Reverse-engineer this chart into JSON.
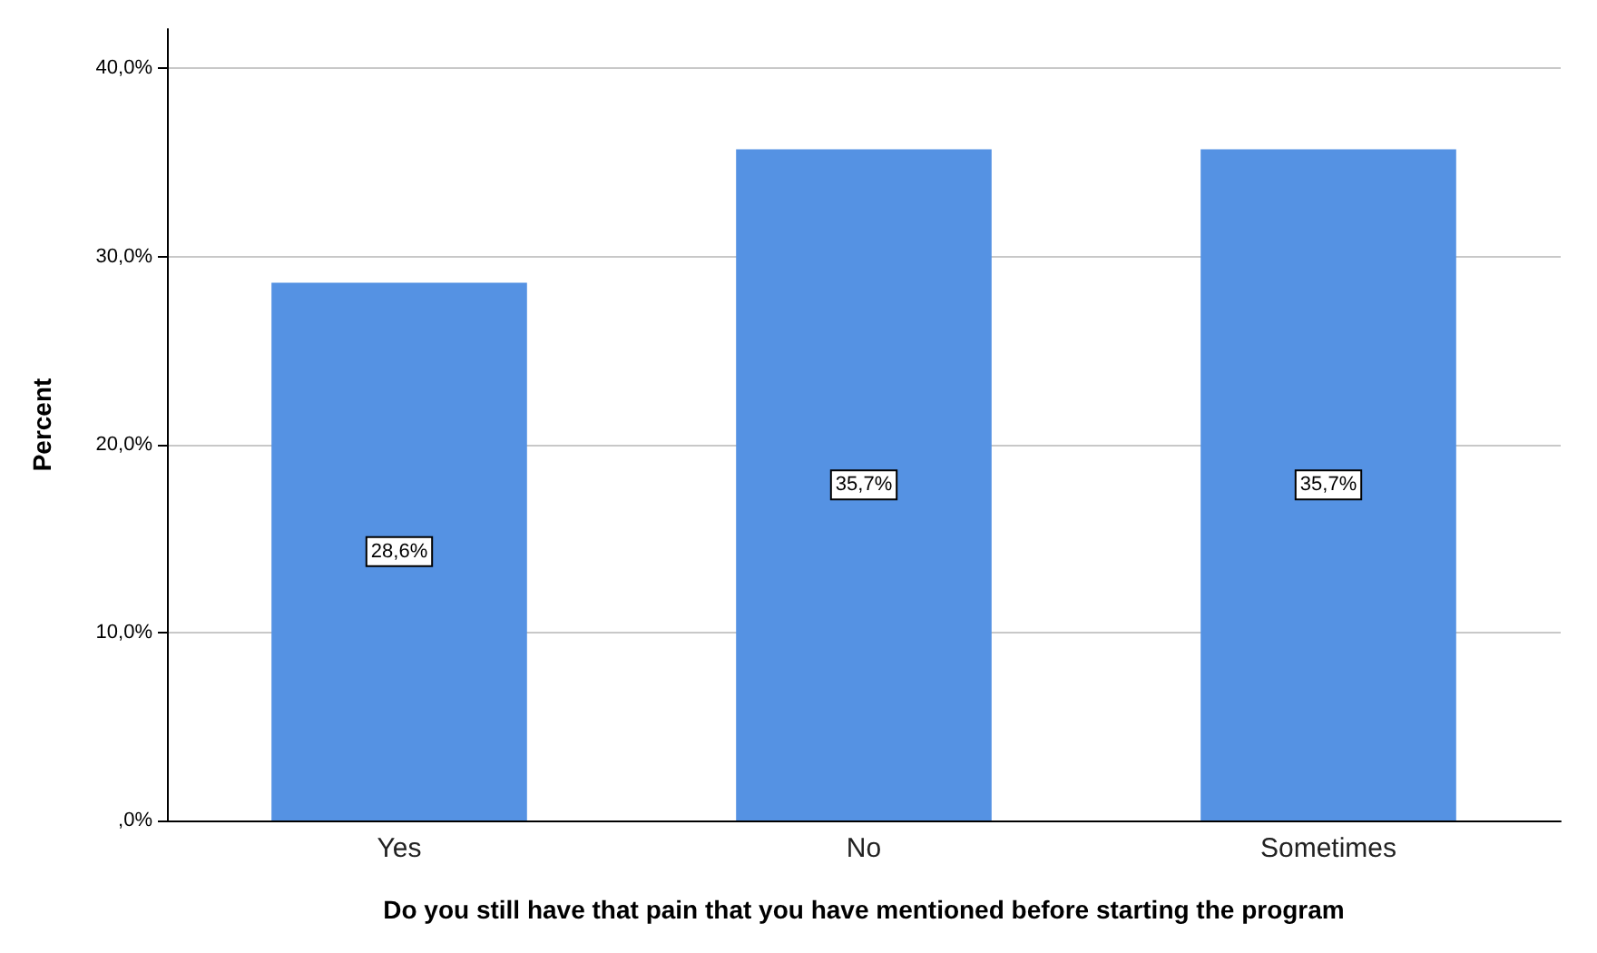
{
  "chart_data": {
    "type": "bar",
    "xlabel": "Do you still have that pain that you have mentioned before starting the program",
    "ylabel": "Percent",
    "categories": [
      "Yes",
      "No",
      "Sometimes"
    ],
    "values": [
      28.6,
      35.7,
      35.7
    ],
    "value_labels": [
      "28,6%",
      "35,7%",
      "35,7%"
    ],
    "color": "#5592e3",
    "ylim": [
      0,
      42.1
    ],
    "yticks": [
      {
        "value": 0,
        "label": ",0%"
      },
      {
        "value": 10,
        "label": "10,0%"
      },
      {
        "value": 20,
        "label": "20,0%"
      },
      {
        "value": 30,
        "label": "30,0%"
      },
      {
        "value": 40,
        "label": "40,0%"
      }
    ],
    "grid": "y"
  }
}
